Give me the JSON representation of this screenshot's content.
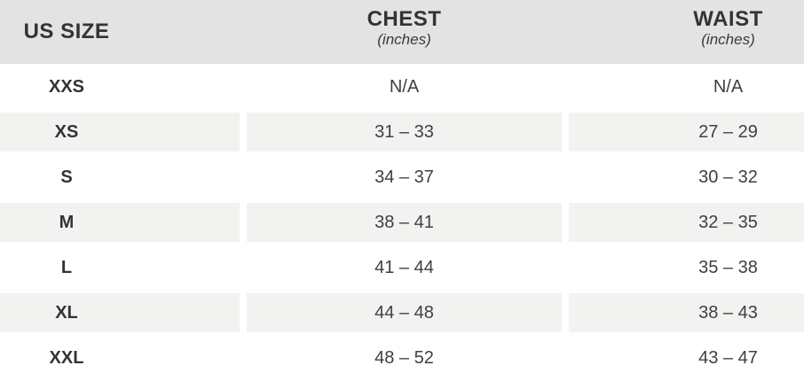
{
  "colors": {
    "header_bg": "#e3e3e3",
    "row_alt_bg": "#f2f2f1",
    "text_dark": "#333333",
    "text_value": "#404040"
  },
  "table": {
    "header": {
      "size_label": "US SIZE",
      "chest_label": "CHEST",
      "chest_unit": "(inches)",
      "waist_label": "WAIST",
      "waist_unit": "(inches)"
    },
    "rows": [
      {
        "size": "XXS",
        "chest": "N/A",
        "waist": "N/A"
      },
      {
        "size": "XS",
        "chest": "31 – 33",
        "waist": "27 – 29"
      },
      {
        "size": "S",
        "chest": "34 – 37",
        "waist": "30 – 32"
      },
      {
        "size": "M",
        "chest": "38 – 41",
        "waist": "32 – 35"
      },
      {
        "size": "L",
        "chest": "41 – 44",
        "waist": "35 – 38"
      },
      {
        "size": "XL",
        "chest": "44 – 48",
        "waist": "38 – 43"
      },
      {
        "size": "XXL",
        "chest": "48 – 52",
        "waist": "43 – 47"
      }
    ]
  },
  "chart_data": {
    "type": "table",
    "columns": [
      "US SIZE",
      "CHEST (inches)",
      "WAIST (inches)"
    ],
    "rows": [
      [
        "XXS",
        "N/A",
        "N/A"
      ],
      [
        "XS",
        "31 – 33",
        "27 – 29"
      ],
      [
        "S",
        "34 – 37",
        "30 – 32"
      ],
      [
        "M",
        "38 – 41",
        "32 – 35"
      ],
      [
        "L",
        "41 – 44",
        "35 – 38"
      ],
      [
        "XL",
        "44 – 48",
        "38 – 43"
      ],
      [
        "XXL",
        "48 – 52",
        "43 – 47"
      ]
    ]
  }
}
